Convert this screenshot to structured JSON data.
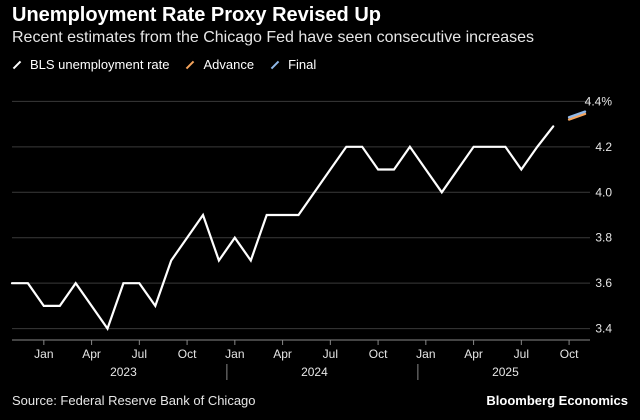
{
  "header": {
    "title": "Unemployment Rate Proxy Revised Up",
    "subtitle": "Recent estimates from the Chicago Fed have seen consecutive increases"
  },
  "footer": {
    "source": "Source: Federal Reserve Bank of Chicago",
    "brand": "Bloomberg Economics"
  },
  "colors": {
    "background": "#000000",
    "bls": "#ffffff",
    "advance": "#f5a45d",
    "final": "#8fb8e8",
    "grid": "#3a3a3a",
    "axis": "#888888"
  },
  "chart_data": {
    "type": "line",
    "ylim": [
      3.35,
      4.45
    ],
    "yticks": [
      3.4,
      3.6,
      3.8,
      4.0,
      4.2,
      4.4
    ],
    "ytick_labels": [
      "3.4",
      "3.6",
      "3.8",
      "4.0",
      "4.2",
      "4.4%"
    ],
    "grid": true,
    "legend_position": "top-left",
    "x_start": "2022-11",
    "x_end": "2025-11",
    "xticks": [
      {
        "x": "2023-01",
        "label": "Jan"
      },
      {
        "x": "2023-04",
        "label": "Apr"
      },
      {
        "x": "2023-07",
        "label": "Jul"
      },
      {
        "x": "2023-10",
        "label": "Oct"
      },
      {
        "x": "2024-01",
        "label": "Jan"
      },
      {
        "x": "2024-04",
        "label": "Apr"
      },
      {
        "x": "2024-07",
        "label": "Jul"
      },
      {
        "x": "2024-10",
        "label": "Oct"
      },
      {
        "x": "2025-01",
        "label": "Jan"
      },
      {
        "x": "2025-04",
        "label": "Apr"
      },
      {
        "x": "2025-07",
        "label": "Jul"
      },
      {
        "x": "2025-10",
        "label": "Oct"
      }
    ],
    "year_labels": [
      {
        "label": "2023",
        "center": "2023-06"
      },
      {
        "label": "2024",
        "center": "2024-06"
      },
      {
        "label": "2025",
        "center": "2025-06"
      }
    ],
    "year_dividers": [
      "2023-12",
      "2024-12"
    ],
    "series": [
      {
        "name": "BLS unemployment rate",
        "color": "#ffffff",
        "points": [
          {
            "x": "2022-11",
            "y": 3.6
          },
          {
            "x": "2022-12",
            "y": 3.6
          },
          {
            "x": "2023-01",
            "y": 3.5
          },
          {
            "x": "2023-02",
            "y": 3.5
          },
          {
            "x": "2023-03",
            "y": 3.6
          },
          {
            "x": "2023-04",
            "y": 3.5
          },
          {
            "x": "2023-05",
            "y": 3.4
          },
          {
            "x": "2023-06",
            "y": 3.6
          },
          {
            "x": "2023-07",
            "y": 3.6
          },
          {
            "x": "2023-08",
            "y": 3.5
          },
          {
            "x": "2023-09",
            "y": 3.7
          },
          {
            "x": "2023-10",
            "y": 3.8
          },
          {
            "x": "2023-11",
            "y": 3.9
          },
          {
            "x": "2023-12",
            "y": 3.7
          },
          {
            "x": "2024-01",
            "y": 3.8
          },
          {
            "x": "2024-02",
            "y": 3.7
          },
          {
            "x": "2024-03",
            "y": 3.9
          },
          {
            "x": "2024-04",
            "y": 3.9
          },
          {
            "x": "2024-05",
            "y": 3.9
          },
          {
            "x": "2024-06",
            "y": 4.0
          },
          {
            "x": "2024-07",
            "y": 4.1
          },
          {
            "x": "2024-08",
            "y": 4.2
          },
          {
            "x": "2024-09",
            "y": 4.2
          },
          {
            "x": "2024-10",
            "y": 4.1
          },
          {
            "x": "2024-11",
            "y": 4.1
          },
          {
            "x": "2024-12",
            "y": 4.2
          },
          {
            "x": "2025-01",
            "y": 4.1
          },
          {
            "x": "2025-02",
            "y": 4.0
          },
          {
            "x": "2025-03",
            "y": 4.1
          },
          {
            "x": "2025-04",
            "y": 4.2
          },
          {
            "x": "2025-05",
            "y": 4.2
          },
          {
            "x": "2025-06",
            "y": 4.2
          },
          {
            "x": "2025-07",
            "y": 4.1
          },
          {
            "x": "2025-08",
            "y": 4.2
          },
          {
            "x": "2025-09",
            "y": 4.29
          }
        ]
      },
      {
        "name": "Advance",
        "color": "#f5a45d",
        "points": [
          {
            "x": "2025-10",
            "y": 4.32
          },
          {
            "x": "2025-11",
            "y": 4.345
          }
        ]
      },
      {
        "name": "Final",
        "color": "#8fb8e8",
        "points": [
          {
            "x": "2025-10",
            "y": 4.33
          },
          {
            "x": "2025-11",
            "y": 4.355
          }
        ]
      }
    ]
  }
}
